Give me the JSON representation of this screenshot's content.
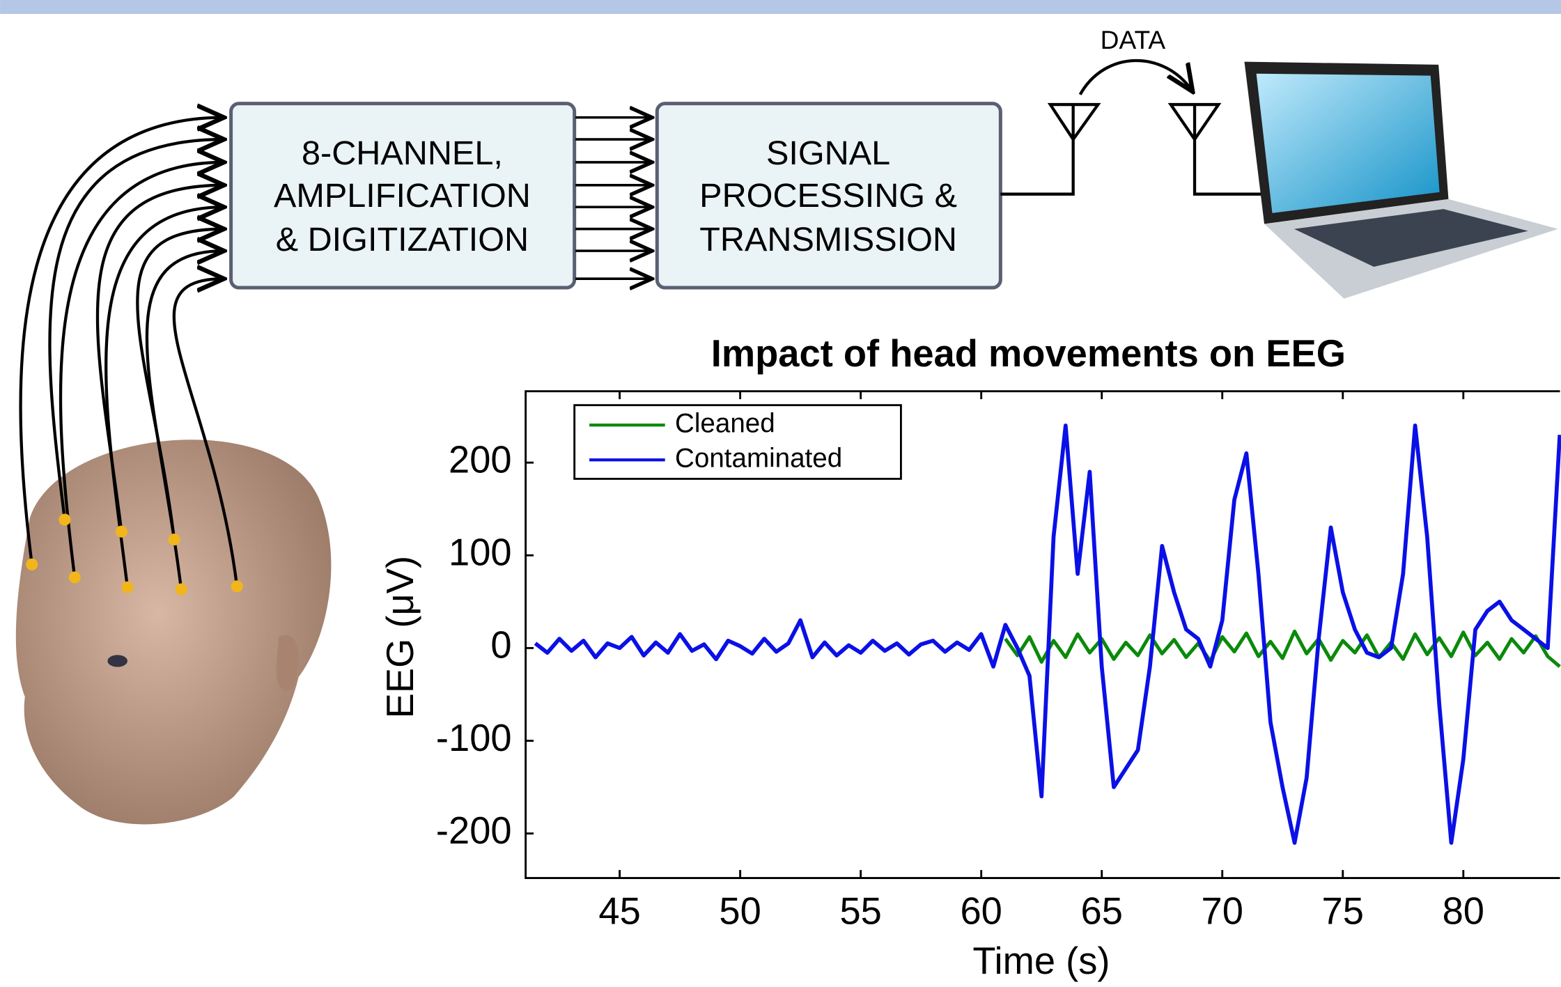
{
  "diagram": {
    "acquisition_block": [
      "8-CHANNEL,",
      "AMPLIFICATION",
      "& DIGITIZATION"
    ],
    "processing_block": [
      "SIGNAL",
      "PROCESSING &",
      "TRANSMISSION"
    ],
    "link_label": "DATA"
  },
  "chart_data": {
    "type": "line",
    "title": "Impact of head movements on EEG",
    "xlabel": "Time (s)",
    "ylabel": "EEG (μV)",
    "xlim": [
      41.1,
      84.05
    ],
    "ylim": [
      -248,
      277
    ],
    "xticks": [
      45,
      50,
      55,
      60,
      65,
      70,
      75,
      80
    ],
    "yticks": [
      -200,
      -100,
      0,
      100,
      200
    ],
    "x": [
      41.5,
      42,
      42.5,
      43,
      43.5,
      44,
      44.5,
      45,
      45.5,
      46,
      46.5,
      47,
      47.5,
      48,
      48.5,
      49,
      49.5,
      50,
      50.5,
      51,
      51.5,
      52,
      52.5,
      53,
      53.5,
      54,
      54.5,
      55,
      55.5,
      56,
      56.5,
      57,
      57.5,
      58,
      58.5,
      59,
      59.5,
      60,
      60.5,
      61,
      61.5,
      62,
      62.5,
      63,
      63.5,
      64,
      64.5,
      65,
      65.5,
      66,
      66.5,
      67,
      67.5,
      68,
      68.5,
      69,
      69.5,
      70,
      70.5,
      71,
      71.5,
      72,
      72.5,
      73,
      73.5,
      74,
      74.5,
      75,
      75.5,
      76,
      76.5,
      77,
      77.5,
      78,
      78.5,
      79,
      79.5,
      80,
      80.5,
      81,
      81.5,
      82,
      82.5,
      83,
      83.5,
      84
    ],
    "series": [
      {
        "name": "Cleaned",
        "color": "#0a8a0a",
        "values": [
          null,
          null,
          null,
          null,
          null,
          null,
          null,
          null,
          null,
          null,
          null,
          null,
          null,
          null,
          null,
          null,
          null,
          null,
          null,
          null,
          null,
          null,
          null,
          null,
          null,
          null,
          null,
          null,
          null,
          null,
          null,
          null,
          null,
          null,
          null,
          null,
          null,
          null,
          null,
          10,
          -8,
          12,
          -15,
          8,
          -10,
          15,
          -5,
          10,
          -12,
          6,
          -8,
          14,
          -6,
          9,
          -10,
          5,
          -14,
          12,
          -4,
          16,
          -9,
          7,
          -11,
          18,
          -6,
          10,
          -13,
          8,
          -5,
          14,
          -10,
          6,
          -12,
          15,
          -7,
          11,
          -9,
          17,
          -8,
          6,
          -12,
          10,
          -5,
          13,
          -9,
          -20
        ]
      },
      {
        "name": "Contaminated",
        "color": "#0a10e6",
        "values": [
          5,
          -5,
          10,
          -3,
          8,
          -10,
          5,
          0,
          12,
          -8,
          6,
          -5,
          15,
          -3,
          4,
          -12,
          8,
          2,
          -6,
          10,
          -4,
          5,
          30,
          -10,
          6,
          -8,
          3,
          -5,
          8,
          -3,
          5,
          -7,
          4,
          8,
          -4,
          6,
          -2,
          15,
          -20,
          25,
          0,
          -30,
          -160,
          120,
          240,
          80,
          190,
          -20,
          -150,
          -130,
          -110,
          -20,
          110,
          60,
          20,
          10,
          -20,
          30,
          160,
          210,
          80,
          -80,
          -150,
          -210,
          -140,
          10,
          130,
          60,
          20,
          -5,
          -10,
          0,
          80,
          240,
          120,
          -60,
          -210,
          -120,
          20,
          40,
          50,
          30,
          20,
          10,
          0,
          230
        ]
      }
    ],
    "legend": "upper left"
  }
}
